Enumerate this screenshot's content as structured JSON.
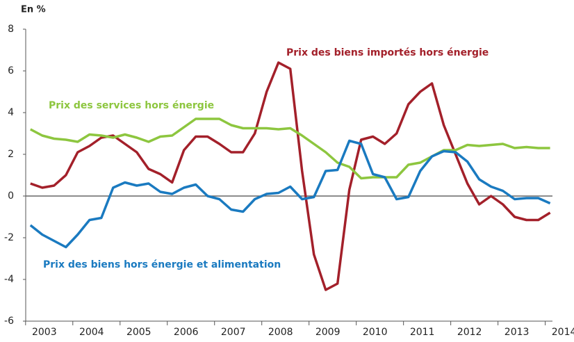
{
  "chart_data": {
    "type": "line",
    "y_axis_label": "En %",
    "x": [
      2003,
      2003.25,
      2003.5,
      2003.75,
      2004,
      2004.25,
      2004.5,
      2004.75,
      2005,
      2005.25,
      2005.5,
      2005.75,
      2006,
      2006.25,
      2006.5,
      2006.75,
      2007,
      2007.25,
      2007.5,
      2007.75,
      2008,
      2008.25,
      2008.5,
      2008.75,
      2009,
      2009.25,
      2009.5,
      2009.75,
      2010,
      2010.25,
      2010.5,
      2010.75,
      2011,
      2011.25,
      2011.5,
      2011.75,
      2012,
      2012.25,
      2012.5,
      2012.75,
      2013,
      2013.25,
      2013.5,
      2013.75,
      2014
    ],
    "series": [
      {
        "name": "Prix des biens importés hors énergie",
        "color": "#a3202a",
        "values": [
          0.6,
          0.4,
          0.5,
          1.0,
          2.1,
          2.4,
          2.8,
          2.9,
          2.5,
          2.1,
          1.3,
          1.05,
          0.65,
          2.2,
          2.85,
          2.85,
          2.5,
          2.1,
          2.1,
          3.0,
          5.0,
          6.4,
          6.1,
          1.2,
          -2.8,
          -4.5,
          -4.2,
          0.3,
          2.7,
          2.85,
          2.5,
          3.0,
          4.4,
          5.0,
          5.4,
          3.4,
          2.0,
          0.6,
          -0.4,
          0.0,
          -0.4,
          -1.0,
          -1.15,
          -1.15,
          -0.8
        ]
      },
      {
        "name": "Prix des services hors énergie",
        "color": "#8dc63f",
        "values": [
          3.2,
          2.9,
          2.75,
          2.7,
          2.6,
          2.95,
          2.9,
          2.8,
          2.95,
          2.8,
          2.6,
          2.85,
          2.9,
          3.3,
          3.7,
          3.7,
          3.7,
          3.4,
          3.25,
          3.25,
          3.25,
          3.2,
          3.25,
          2.9,
          2.5,
          2.1,
          1.6,
          1.4,
          0.85,
          0.9,
          0.9,
          0.9,
          1.5,
          1.6,
          1.9,
          2.2,
          2.2,
          2.45,
          2.4,
          2.45,
          2.5,
          2.3,
          2.35,
          2.3,
          2.3
        ]
      },
      {
        "name": "Prix des biens hors énergie et alimentation",
        "color": "#1a7ac0",
        "values": [
          -1.4,
          -1.85,
          -2.15,
          -2.45,
          -1.85,
          -1.15,
          -1.05,
          0.4,
          0.65,
          0.5,
          0.6,
          0.2,
          0.1,
          0.4,
          0.55,
          0.0,
          -0.15,
          -0.65,
          -0.75,
          -0.15,
          0.1,
          0.15,
          0.45,
          -0.15,
          -0.05,
          1.2,
          1.25,
          2.65,
          2.5,
          1.05,
          0.9,
          -0.15,
          -0.05,
          1.2,
          1.9,
          2.15,
          2.1,
          1.65,
          0.8,
          0.45,
          0.25,
          -0.15,
          -0.1,
          -0.1,
          -0.35
        ]
      }
    ],
    "xlim": [
      2002.9,
      2014.05
    ],
    "xticks": [
      2003,
      2004,
      2005,
      2006,
      2007,
      2008,
      2009,
      2010,
      2011,
      2012,
      2013,
      2014
    ],
    "ylim": [
      -6,
      8
    ],
    "yticks": [
      -6,
      -4,
      -2,
      0,
      2,
      4,
      6,
      8
    ]
  }
}
